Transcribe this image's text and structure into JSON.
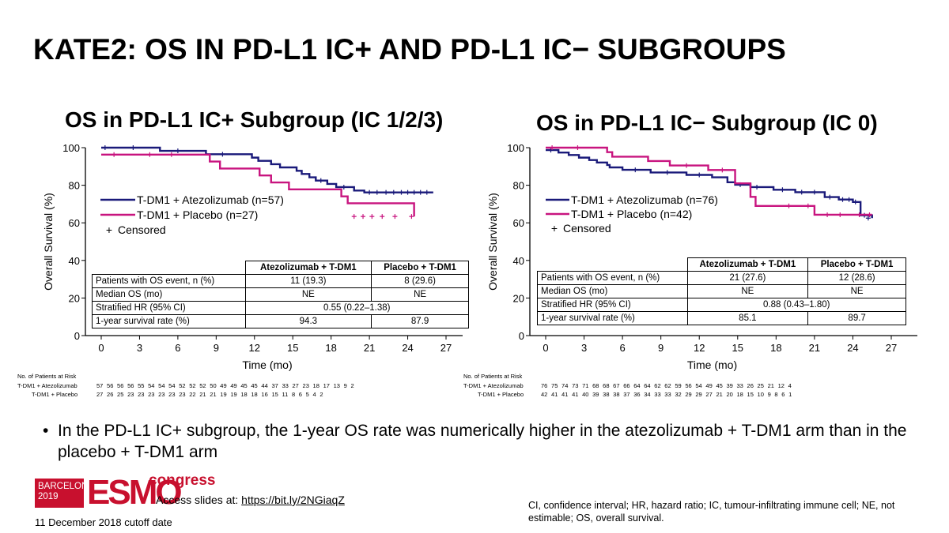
{
  "slide": {
    "title": "KATE2: OS IN PD-L1 IC+ AND PD-L1 IC− SUBGROUPS",
    "bullet": "In the PD-L1 IC+ subgroup, the 1-year OS rate was numerically higher in the atezolizumab + T-DM1 arm than in the placebo + T-DM1 arm",
    "logo": {
      "city": "BARCELONA",
      "year": "2019",
      "brand": "ESMO",
      "suffix": "congress"
    },
    "access_label": "Access slides at:",
    "access_link": "https://bit.ly/2NGiaqZ",
    "cutoff": "11 December 2018 cutoff date",
    "footnote": "CI, confidence interval; HR, hazard ratio; IC, tumour-infiltrating immune cell; NE, not estimable; OS, overall survival."
  },
  "colors": {
    "atezo": "#1a1a7a",
    "placebo": "#c8147f",
    "logo_red": "#c8102e"
  },
  "chart_data": [
    {
      "type": "line",
      "title": "OS in PD-L1 IC+ Subgroup (IC 1/2/3)",
      "xlabel": "Time (mo)",
      "ylabel": "Overall Survival (%)",
      "xlim": [
        0,
        27
      ],
      "ylim": [
        0,
        100
      ],
      "xticks": [
        0,
        3,
        6,
        9,
        12,
        15,
        18,
        21,
        24,
        27
      ],
      "yticks": [
        0,
        20,
        40,
        60,
        80,
        100
      ],
      "legend": [
        {
          "label": "T-DM1 + Atezolizumab (n=57)",
          "series": "atezo"
        },
        {
          "label": "T-DM1 + Placebo (n=27)",
          "series": "placebo"
        },
        {
          "label": "Censored",
          "marker": "+"
        }
      ],
      "series": [
        {
          "name": "T-DM1 + Atezolizumab",
          "key": "atezo",
          "x": [
            0,
            4.6,
            8.2,
            11.8,
            12.3,
            13.3,
            14.0,
            15.3,
            15.7,
            16.3,
            16.8,
            17.7,
            18.4,
            19.3,
            19.8,
            20.6,
            22.0,
            26.0
          ],
          "y": [
            100,
            98.3,
            96.5,
            94.7,
            93.0,
            91.2,
            89.5,
            87.7,
            86.0,
            84.2,
            82.5,
            80.7,
            79.0,
            79.0,
            77.2,
            76.2,
            76.2,
            76.2
          ],
          "censored": [
            [
              0.3,
              100
            ],
            [
              2.5,
              100
            ],
            [
              6.0,
              98.3
            ],
            [
              9.5,
              96.5
            ],
            [
              17.2,
              82.5
            ],
            [
              19.0,
              79.0
            ],
            [
              21.0,
              76.2
            ],
            [
              21.6,
              76.2
            ],
            [
              22.3,
              76.2
            ],
            [
              22.9,
              76.2
            ],
            [
              23.5,
              76.2
            ],
            [
              24.0,
              76.2
            ],
            [
              24.5,
              76.2
            ],
            [
              25.0,
              76.2
            ],
            [
              25.5,
              76.2
            ]
          ]
        },
        {
          "name": "T-DM1 + Placebo",
          "key": "placebo",
          "x": [
            0,
            8.5,
            9.3,
            12.4,
            13.3,
            14.7,
            18.8,
            19.3,
            24.5
          ],
          "y": [
            96.3,
            92.6,
            88.9,
            85.2,
            81.5,
            77.8,
            74.1,
            70.4,
            63.4
          ],
          "censored": [
            [
              1.0,
              96.3
            ],
            [
              3.8,
              96.3
            ],
            [
              5.5,
              96.3
            ],
            [
              19.8,
              63.4
            ],
            [
              20.5,
              63.4
            ],
            [
              21.2,
              63.4
            ],
            [
              22.0,
              63.4
            ],
            [
              23.0,
              63.4
            ],
            [
              24.3,
              63.4
            ]
          ]
        }
      ],
      "table": {
        "headers": [
          "",
          "Atezolizumab + T-DM1",
          "Placebo + T-DM1"
        ],
        "rows": [
          {
            "label": "Patients with OS event, n (%)",
            "atezo": "11 (19.3)",
            "placebo": "8 (29.6)"
          },
          {
            "label": "Median OS (mo)",
            "atezo": "NE",
            "placebo": "NE"
          },
          {
            "label": "Stratified HR (95% CI)",
            "merged": "0.55 (0.22–1.38)"
          },
          {
            "label": "1-year survival rate (%)",
            "atezo": "94.3",
            "placebo": "87.9"
          }
        ]
      },
      "risk": {
        "title": "No. of Patients at Risk",
        "rows": [
          {
            "label": "T-DM1 + Atezolizumab",
            "values": "57 56 56 56 55 54 54 54 52 52 52 50 49 49 45 45 44 37 33 27 23 18 17 13 9 2"
          },
          {
            "label": "T-DM1 + Placebo",
            "values": "27 26 25 23 23 23 23 23 23 22 21 21 19 19 18 18 16 15 11 8 6 5 4 2"
          }
        ]
      }
    },
    {
      "type": "line",
      "title": "OS in PD-L1 IC− Subgroup (IC 0)",
      "xlabel": "Time (mo)",
      "ylabel": "Overall Survival (%)",
      "xlim": [
        0,
        27
      ],
      "ylim": [
        0,
        100
      ],
      "xticks": [
        0,
        3,
        6,
        9,
        12,
        15,
        18,
        21,
        24,
        27
      ],
      "yticks": [
        0,
        20,
        40,
        60,
        80,
        100
      ],
      "legend": [
        {
          "label": "T-DM1 + Atezolizumab (n=76)",
          "series": "atezo"
        },
        {
          "label": "T-DM1 + Placebo (n=42)",
          "series": "placebo"
        },
        {
          "label": "Censored",
          "marker": "+"
        }
      ],
      "series": [
        {
          "name": "T-DM1 + Atezolizumab",
          "key": "atezo",
          "x": [
            0,
            1.0,
            1.8,
            2.6,
            3.4,
            4.0,
            4.8,
            5.0,
            6.0,
            8.2,
            8.4,
            11.0,
            13.0,
            14.2,
            14.8,
            16.0,
            17.8,
            19.5,
            21.8,
            22.9,
            24.0,
            24.6,
            25.5
          ],
          "y": [
            98.7,
            97.4,
            96.1,
            94.7,
            93.4,
            92.1,
            90.8,
            89.5,
            88.2,
            86.8,
            86.8,
            85.5,
            84.2,
            81.6,
            80.3,
            79.0,
            77.6,
            76.3,
            73.7,
            72.4,
            71.1,
            64.0,
            62.5
          ],
          "censored": [
            [
              0.4,
              98.7
            ],
            [
              7.0,
              88.2
            ],
            [
              9.5,
              86.8
            ],
            [
              12.0,
              85.5
            ],
            [
              15.2,
              80.3
            ],
            [
              16.5,
              79.0
            ],
            [
              18.5,
              77.6
            ],
            [
              20.0,
              76.3
            ],
            [
              21.0,
              76.3
            ],
            [
              22.2,
              73.7
            ],
            [
              23.2,
              72.4
            ],
            [
              23.7,
              72.4
            ],
            [
              24.2,
              71.1
            ],
            [
              24.9,
              64.0
            ],
            [
              25.2,
              62.5
            ]
          ]
        },
        {
          "name": "T-DM1 + Placebo",
          "key": "placebo",
          "x": [
            0,
            4.8,
            5.2,
            8.0,
            9.7,
            12.7,
            14.8,
            16.0,
            16.4,
            21.0,
            24.1,
            25.5
          ],
          "y": [
            100,
            97.6,
            95.2,
            92.9,
            90.5,
            88.1,
            81.0,
            73.8,
            69.0,
            64.3,
            64.3,
            64.3
          ],
          "censored": [
            [
              0.5,
              100
            ],
            [
              2.5,
              100
            ],
            [
              11.0,
              90.5
            ],
            [
              13.8,
              88.1
            ],
            [
              19.0,
              69.0
            ],
            [
              20.5,
              69.0
            ],
            [
              22.0,
              64.3
            ],
            [
              23.0,
              64.3
            ],
            [
              24.5,
              64.3
            ],
            [
              25.3,
              64.3
            ]
          ]
        }
      ],
      "table": {
        "headers": [
          "",
          "Atezolizumab + T-DM1",
          "Placebo + T-DM1"
        ],
        "rows": [
          {
            "label": "Patients with OS event, n (%)",
            "atezo": "21  (27.6)",
            "placebo": "12 (28.6)"
          },
          {
            "label": "Median OS (mo)",
            "atezo": "NE",
            "placebo": "NE"
          },
          {
            "label": "Stratified HR (95% CI)",
            "merged": "0.88 (0.43–1.80)"
          },
          {
            "label": "1-year survival rate (%)",
            "atezo": "85.1",
            "placebo": "89.7"
          }
        ]
      },
      "risk": {
        "title": "No. of Patients at Risk",
        "rows": [
          {
            "label": "T-DM1 + Atezolizumab",
            "values": "76 75 74 73 71 68 68 67 66 64 64 62 62 59 56 54 49 45 39 33 26 25 21 12 4"
          },
          {
            "label": "T-DM1 + Placebo",
            "values": "42 41 41 41 40 39 38 38 37 36 34 33 33 32 29 29 27 21 20 18 15 10 9 8 6 1"
          }
        ]
      }
    }
  ]
}
